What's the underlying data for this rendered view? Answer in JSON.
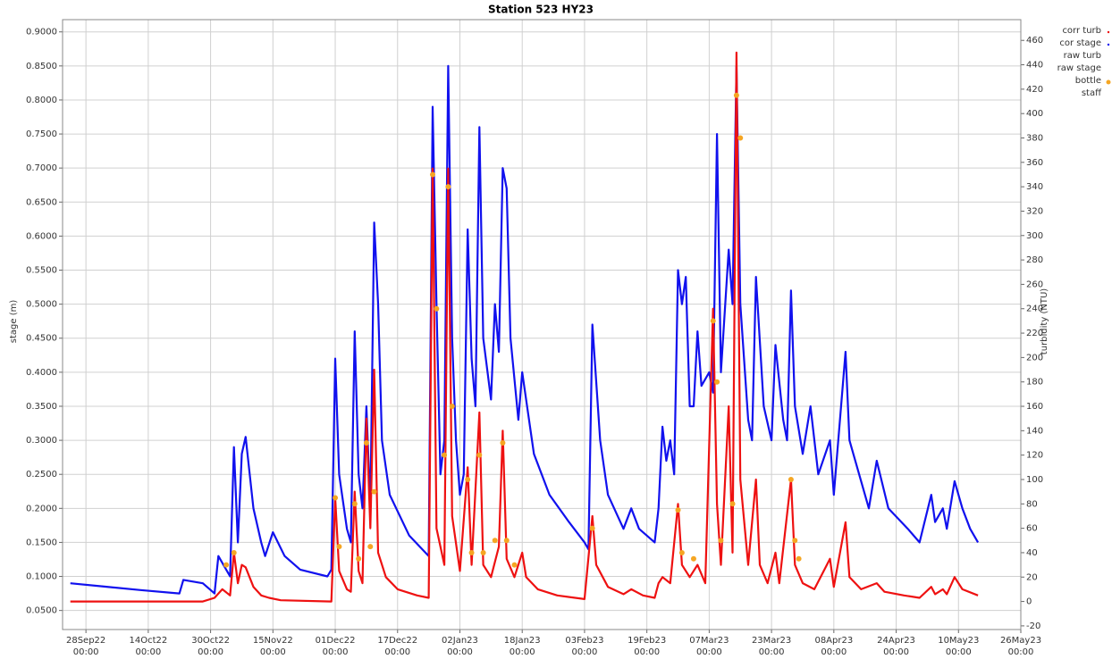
{
  "chart_data": {
    "type": "line",
    "title": "Station 523 HY23",
    "y_label": "stage (m)",
    "y2_label": "turbidity (NTU)",
    "xlim": [
      "2022-09-22",
      "2023-05-26"
    ],
    "xticks": [
      {
        "value": "2022-09-28",
        "label": "28Sep22 00:00"
      },
      {
        "value": "2022-10-14",
        "label": "14Oct22 00:00"
      },
      {
        "value": "2022-10-30",
        "label": "30Oct22 00:00"
      },
      {
        "value": "2022-11-15",
        "label": "15Nov22 00:00"
      },
      {
        "value": "2022-12-01",
        "label": "01Dec22 00:00"
      },
      {
        "value": "2022-12-17",
        "label": "17Dec22 00:00"
      },
      {
        "value": "2023-01-02",
        "label": "02Jan23 00:00"
      },
      {
        "value": "2023-01-18",
        "label": "18Jan23 00:00"
      },
      {
        "value": "2023-02-03",
        "label": "03Feb23 00:00"
      },
      {
        "value": "2023-02-19",
        "label": "19Feb23 00:00"
      },
      {
        "value": "2023-03-07",
        "label": "07Mar23 00:00"
      },
      {
        "value": "2023-03-23",
        "label": "23Mar23 00:00"
      },
      {
        "value": "2023-04-08",
        "label": "08Apr23 00:00"
      },
      {
        "value": "2023-04-24",
        "label": "24Apr23 00:00"
      },
      {
        "value": "2023-05-10",
        "label": "10May23 00:00"
      },
      {
        "value": "2023-05-26",
        "label": "26May23 00:00"
      }
    ],
    "ylim": [
      0.022,
      0.918
    ],
    "yticks": [
      {
        "value": 0.05,
        "label": "0.0500"
      },
      {
        "value": 0.1,
        "label": "0.1000"
      },
      {
        "value": 0.15,
        "label": "0.1500"
      },
      {
        "value": 0.2,
        "label": "0.2000"
      },
      {
        "value": 0.25,
        "label": "0.2500"
      },
      {
        "value": 0.3,
        "label": "0.3000"
      },
      {
        "value": 0.35,
        "label": "0.3500"
      },
      {
        "value": 0.4,
        "label": "0.4000"
      },
      {
        "value": 0.45,
        "label": "0.4500"
      },
      {
        "value": 0.5,
        "label": "0.5000"
      },
      {
        "value": 0.55,
        "label": "0.5500"
      },
      {
        "value": 0.6,
        "label": "0.6000"
      },
      {
        "value": 0.65,
        "label": "0.6500"
      },
      {
        "value": 0.7,
        "label": "0.7000"
      },
      {
        "value": 0.75,
        "label": "0.7500"
      },
      {
        "value": 0.8,
        "label": "0.8000"
      },
      {
        "value": 0.85,
        "label": "0.8500"
      },
      {
        "value": 0.9,
        "label": "0.9000"
      }
    ],
    "y2lim": [
      -23,
      477
    ],
    "y2ticks": [
      -20,
      0,
      20,
      40,
      60,
      80,
      100,
      120,
      140,
      160,
      180,
      200,
      220,
      240,
      260,
      280,
      300,
      320,
      340,
      360,
      380,
      400,
      420,
      440,
      460
    ],
    "grid": true,
    "legend": "upper right",
    "series": [
      {
        "name": "corr turb",
        "color": "#ee1111",
        "axis": "y2",
        "x": [
          "2022-09-24",
          "2022-10-28",
          "2022-10-31",
          "2022-11-02",
          "2022-11-04",
          "2022-11-05",
          "2022-11-06",
          "2022-11-07",
          "2022-11-08",
          "2022-11-10",
          "2022-11-12",
          "2022-11-14",
          "2022-11-17",
          "2022-11-30",
          "2022-12-01",
          "2022-12-02",
          "2022-12-04",
          "2022-12-05",
          "2022-12-06",
          "2022-12-07",
          "2022-12-08",
          "2022-12-09",
          "2022-12-10",
          "2022-12-11",
          "2022-12-12",
          "2022-12-14",
          "2022-12-17",
          "2022-12-22",
          "2022-12-25",
          "2022-12-26",
          "2022-12-27",
          "2022-12-29",
          "2022-12-30",
          "2022-12-31",
          "2023-01-02",
          "2023-01-04",
          "2023-01-05",
          "2023-01-07",
          "2023-01-08",
          "2023-01-10",
          "2023-01-12",
          "2023-01-13",
          "2023-01-14",
          "2023-01-16",
          "2023-01-18",
          "2023-01-19",
          "2023-01-22",
          "2023-01-27",
          "2023-02-03",
          "2023-02-05",
          "2023-02-06",
          "2023-02-09",
          "2023-02-13",
          "2023-02-15",
          "2023-02-18",
          "2023-02-21",
          "2023-02-22",
          "2023-02-23",
          "2023-02-25",
          "2023-02-27",
          "2023-02-28",
          "2023-03-02",
          "2023-03-04",
          "2023-03-06",
          "2023-03-08",
          "2023-03-09",
          "2023-03-10",
          "2023-03-12",
          "2023-03-13",
          "2023-03-14",
          "2023-03-15",
          "2023-03-17",
          "2023-03-19",
          "2023-03-20",
          "2023-03-22",
          "2023-03-24",
          "2023-03-25",
          "2023-03-28",
          "2023-03-29",
          "2023-03-31",
          "2023-04-03",
          "2023-04-07",
          "2023-04-08",
          "2023-04-11",
          "2023-04-12",
          "2023-04-15",
          "2023-04-19",
          "2023-04-21",
          "2023-04-26",
          "2023-04-30",
          "2023-05-03",
          "2023-05-04",
          "2023-05-06",
          "2023-05-07",
          "2023-05-09",
          "2023-05-11",
          "2023-05-15"
        ],
        "values": [
          0,
          0,
          3,
          10,
          5,
          40,
          15,
          30,
          28,
          12,
          5,
          3,
          1,
          0,
          85,
          25,
          10,
          8,
          90,
          25,
          15,
          150,
          60,
          190,
          40,
          20,
          10,
          5,
          3,
          355,
          60,
          30,
          355,
          70,
          25,
          110,
          30,
          155,
          30,
          20,
          45,
          140,
          35,
          20,
          40,
          20,
          10,
          5,
          2,
          70,
          30,
          12,
          6,
          10,
          5,
          3,
          15,
          20,
          15,
          80,
          30,
          20,
          30,
          15,
          240,
          80,
          30,
          160,
          40,
          450,
          100,
          30,
          100,
          30,
          15,
          40,
          15,
          100,
          30,
          15,
          10,
          35,
          12,
          65,
          20,
          10,
          15,
          8,
          5,
          3,
          12,
          6,
          10,
          6,
          20,
          10,
          5
        ]
      },
      {
        "name": "cor stage",
        "color": "#1111ee",
        "x": [
          "2022-09-24",
          "2022-10-03",
          "2022-10-12",
          "2022-10-22",
          "2022-10-23",
          "2022-10-28",
          "2022-10-31",
          "2022-11-01",
          "2022-11-04",
          "2022-11-05",
          "2022-11-06",
          "2022-11-07",
          "2022-11-08",
          "2022-11-10",
          "2022-11-12",
          "2022-11-13",
          "2022-11-15",
          "2022-11-18",
          "2022-11-22",
          "2022-11-29",
          "2022-11-30",
          "2022-12-01",
          "2022-12-02",
          "2022-12-04",
          "2022-12-05",
          "2022-12-06",
          "2022-12-07",
          "2022-12-08",
          "2022-12-09",
          "2022-12-10",
          "2022-12-11",
          "2022-12-12",
          "2022-12-13",
          "2022-12-15",
          "2022-12-20",
          "2022-12-25",
          "2022-12-26",
          "2022-12-27",
          "2022-12-28",
          "2022-12-29",
          "2022-12-30",
          "2022-12-31",
          "2023-01-01",
          "2023-01-02",
          "2023-01-03",
          "2023-01-04",
          "2023-01-05",
          "2023-01-06",
          "2023-01-07",
          "2023-01-08",
          "2023-01-10",
          "2023-01-11",
          "2023-01-12",
          "2023-01-13",
          "2023-01-14",
          "2023-01-15",
          "2023-01-17",
          "2023-01-18",
          "2023-01-21",
          "2023-01-25",
          "2023-01-30",
          "2023-02-03",
          "2023-02-04",
          "2023-02-05",
          "2023-02-07",
          "2023-02-09",
          "2023-02-13",
          "2023-02-15",
          "2023-02-17",
          "2023-02-21",
          "2023-02-22",
          "2023-02-23",
          "2023-02-24",
          "2023-02-25",
          "2023-02-26",
          "2023-02-27",
          "2023-02-28",
          "2023-03-01",
          "2023-03-02",
          "2023-03-03",
          "2023-03-04",
          "2023-03-05",
          "2023-03-07",
          "2023-03-08",
          "2023-03-09",
          "2023-03-10",
          "2023-03-12",
          "2023-03-13",
          "2023-03-14",
          "2023-03-15",
          "2023-03-17",
          "2023-03-18",
          "2023-03-19",
          "2023-03-21",
          "2023-03-23",
          "2023-03-24",
          "2023-03-26",
          "2023-03-27",
          "2023-03-28",
          "2023-03-29",
          "2023-03-31",
          "2023-04-02",
          "2023-04-04",
          "2023-04-07",
          "2023-04-08",
          "2023-04-11",
          "2023-04-12",
          "2023-04-15",
          "2023-04-17",
          "2023-04-19",
          "2023-04-22",
          "2023-04-27",
          "2023-04-30",
          "2023-05-03",
          "2023-05-04",
          "2023-05-06",
          "2023-05-07",
          "2023-05-09",
          "2023-05-11",
          "2023-05-13",
          "2023-05-15"
        ],
        "values": [
          0.09,
          0.085,
          0.08,
          0.075,
          0.095,
          0.09,
          0.075,
          0.13,
          0.1,
          0.29,
          0.15,
          0.28,
          0.305,
          0.2,
          0.15,
          0.13,
          0.165,
          0.13,
          0.11,
          0.1,
          0.11,
          0.42,
          0.25,
          0.17,
          0.15,
          0.46,
          0.25,
          0.2,
          0.35,
          0.2,
          0.62,
          0.5,
          0.3,
          0.22,
          0.16,
          0.13,
          0.79,
          0.5,
          0.25,
          0.3,
          0.85,
          0.45,
          0.3,
          0.22,
          0.25,
          0.61,
          0.42,
          0.35,
          0.76,
          0.45,
          0.36,
          0.5,
          0.43,
          0.7,
          0.67,
          0.45,
          0.33,
          0.4,
          0.28,
          0.22,
          0.18,
          0.15,
          0.14,
          0.47,
          0.3,
          0.22,
          0.17,
          0.2,
          0.17,
          0.15,
          0.2,
          0.32,
          0.27,
          0.3,
          0.25,
          0.55,
          0.5,
          0.54,
          0.35,
          0.35,
          0.46,
          0.38,
          0.4,
          0.37,
          0.75,
          0.4,
          0.58,
          0.5,
          0.85,
          0.5,
          0.33,
          0.3,
          0.54,
          0.35,
          0.3,
          0.44,
          0.33,
          0.3,
          0.52,
          0.35,
          0.28,
          0.35,
          0.25,
          0.3,
          0.22,
          0.43,
          0.3,
          0.24,
          0.2,
          0.27,
          0.2,
          0.17,
          0.15,
          0.22,
          0.18,
          0.2,
          0.17,
          0.24,
          0.2,
          0.17,
          0.15
        ]
      },
      {
        "name": "raw turb"
      },
      {
        "name": "raw stage"
      },
      {
        "name": "bottle",
        "color": "#f5a623",
        "axis": "y2",
        "type": "scatter",
        "x": [
          "2022-11-03",
          "2022-11-05",
          "2022-12-01",
          "2022-12-02",
          "2022-12-06",
          "2022-12-07",
          "2022-12-09",
          "2022-12-10",
          "2022-12-11",
          "2022-12-26",
          "2022-12-27",
          "2022-12-29",
          "2022-12-30",
          "2022-12-31",
          "2023-01-04",
          "2023-01-05",
          "2023-01-07",
          "2023-01-08",
          "2023-01-11",
          "2023-01-13",
          "2023-01-14",
          "2023-01-16",
          "2023-02-05",
          "2023-02-27",
          "2023-02-28",
          "2023-03-03",
          "2023-03-08",
          "2023-03-09",
          "2023-03-10",
          "2023-03-13",
          "2023-03-14",
          "2023-03-15",
          "2023-03-28",
          "2023-03-29",
          "2023-03-30"
        ],
        "values": [
          30,
          40,
          85,
          45,
          80,
          35,
          130,
          45,
          90,
          350,
          240,
          120,
          340,
          160,
          100,
          40,
          120,
          40,
          50,
          130,
          50,
          30,
          60,
          75,
          40,
          35,
          230,
          180,
          50,
          80,
          415,
          380,
          100,
          50,
          35
        ]
      },
      {
        "name": "staff"
      }
    ]
  }
}
